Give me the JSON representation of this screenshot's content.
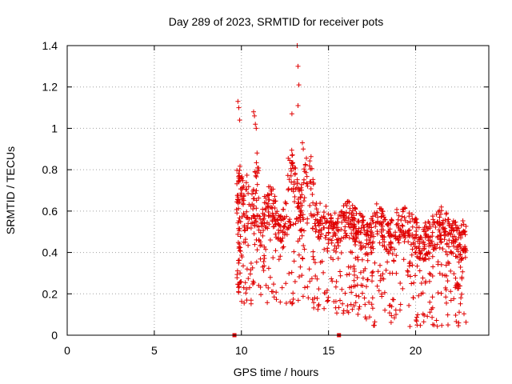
{
  "chart_data": {
    "type": "scatter",
    "title": "Day 289 of 2023, SRMTID for receiver pots",
    "xlabel": "GPS time / hours",
    "ylabel": "SRMTID / TECUs",
    "xlim": [
      0,
      24.2
    ],
    "ylim": [
      0,
      1.4
    ],
    "xticks": [
      0,
      5,
      10,
      15,
      20
    ],
    "yticks": [
      0,
      0.2,
      0.4,
      0.6,
      0.8,
      1,
      1.2,
      1.4
    ],
    "ytick_labels": [
      "0",
      "0.2",
      "0.4",
      "0.6",
      "0.8",
      "1",
      "1.2",
      "1.4"
    ],
    "grid": true,
    "marker": "+",
    "color": "#e00000",
    "data_extent": {
      "x": [
        9.6,
        22.9
      ],
      "y": [
        0.02,
        1.4
      ]
    },
    "gap_markers_x": [
      9.6,
      15.6
    ],
    "highlight_points": [
      {
        "x": 13.2,
        "y": 1.4
      },
      {
        "x": 13.25,
        "y": 1.3
      },
      {
        "x": 13.3,
        "y": 1.21
      },
      {
        "x": 13.25,
        "y": 1.11
      },
      {
        "x": 10.7,
        "y": 1.08
      },
      {
        "x": 10.75,
        "y": 1.06
      },
      {
        "x": 10.8,
        "y": 1.02
      },
      {
        "x": 10.85,
        "y": 1.0
      },
      {
        "x": 12.9,
        "y": 1.07
      },
      {
        "x": 9.8,
        "y": 1.13
      },
      {
        "x": 9.85,
        "y": 1.1
      },
      {
        "x": 9.9,
        "y": 1.04
      },
      {
        "x": 13.5,
        "y": 0.93
      },
      {
        "x": 13.55,
        "y": 0.9
      }
    ]
  }
}
